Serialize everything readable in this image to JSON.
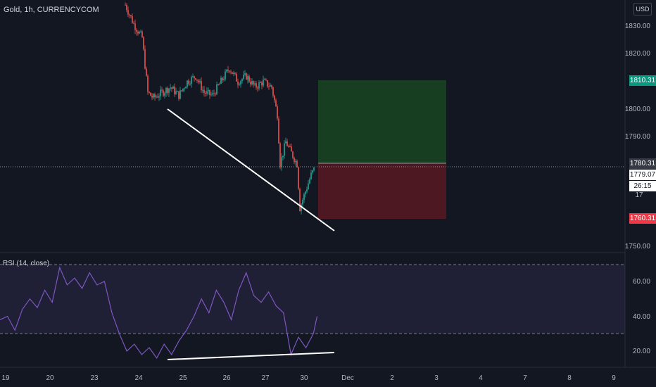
{
  "header": {
    "symbol": "Gold, 1h, CURRENCYCOM",
    "currency": "USD"
  },
  "price_axis": {
    "ticks": [
      "1830.00",
      "1820.00",
      "1800.00",
      "1790.00",
      "1750.00"
    ],
    "badges": {
      "target": "1810.31",
      "entry": "1780.31",
      "current": "1779.07",
      "countdown": "26:15",
      "stop": "1760.31",
      "partial": "17"
    }
  },
  "rsi": {
    "title": "RSI (14, close)",
    "ticks": [
      "60.00",
      "40.00",
      "20.00"
    ]
  },
  "time_axis": [
    "19",
    "20",
    "23",
    "24",
    "25",
    "26",
    "27",
    "30",
    "Dec",
    "2",
    "3",
    "4",
    "7",
    "8",
    "9"
  ],
  "chart_data": [
    {
      "type": "candlestick",
      "title": "Gold, 1h, CURRENCYCOM",
      "y_ticks": [
        1830,
        1820,
        1800,
        1790,
        1750
      ],
      "close_path": [
        [
          0,
          1838
        ],
        [
          6,
          1831
        ],
        [
          12,
          1826
        ],
        [
          16,
          1806
        ],
        [
          20,
          1804
        ],
        [
          26,
          1806
        ],
        [
          32,
          1808
        ],
        [
          38,
          1805
        ],
        [
          44,
          1810
        ],
        [
          50,
          1812
        ],
        [
          56,
          1806
        ],
        [
          62,
          1805
        ],
        [
          68,
          1810
        ],
        [
          74,
          1815
        ],
        [
          80,
          1810
        ],
        [
          86,
          1812
        ],
        [
          92,
          1808
        ],
        [
          98,
          1810
        ],
        [
          104,
          1808
        ],
        [
          108,
          1798
        ],
        [
          110,
          1780
        ],
        [
          114,
          1788
        ],
        [
          118,
          1784
        ],
        [
          122,
          1780
        ],
        [
          124,
          1764
        ],
        [
          128,
          1770
        ],
        [
          132,
          1776
        ],
        [
          135,
          1779
        ]
      ],
      "trendline": {
        "from": [
          20,
          1800
        ],
        "to": [
          165,
          1757
        ]
      },
      "position": {
        "entry": 1780.31,
        "target": 1810.31,
        "stop": 1760.31,
        "current": 1779.07
      }
    },
    {
      "type": "line",
      "title": "RSI (14, close)",
      "y_ticks": [
        60,
        40,
        20
      ],
      "levels": [
        70,
        30
      ],
      "values": [
        [
          0,
          38
        ],
        [
          4,
          40
        ],
        [
          8,
          32
        ],
        [
          12,
          44
        ],
        [
          16,
          50
        ],
        [
          20,
          45
        ],
        [
          24,
          55
        ],
        [
          28,
          48
        ],
        [
          32,
          68
        ],
        [
          36,
          58
        ],
        [
          40,
          62
        ],
        [
          44,
          56
        ],
        [
          48,
          65
        ],
        [
          52,
          58
        ],
        [
          56,
          60
        ],
        [
          60,
          42
        ],
        [
          64,
          30
        ],
        [
          68,
          20
        ],
        [
          72,
          24
        ],
        [
          76,
          18
        ],
        [
          80,
          22
        ],
        [
          84,
          16
        ],
        [
          88,
          24
        ],
        [
          92,
          18
        ],
        [
          96,
          26
        ],
        [
          100,
          32
        ],
        [
          104,
          40
        ],
        [
          108,
          50
        ],
        [
          112,
          42
        ],
        [
          116,
          55
        ],
        [
          120,
          48
        ],
        [
          124,
          38
        ],
        [
          128,
          55
        ],
        [
          132,
          65
        ],
        [
          136,
          52
        ],
        [
          140,
          48
        ],
        [
          144,
          54
        ],
        [
          148,
          46
        ],
        [
          152,
          42
        ],
        [
          156,
          18
        ],
        [
          160,
          28
        ],
        [
          164,
          22
        ],
        [
          168,
          30
        ],
        [
          170,
          40
        ]
      ],
      "trendline": {
        "from": [
          84,
          15
        ],
        "to": [
          175,
          20
        ]
      }
    }
  ]
}
